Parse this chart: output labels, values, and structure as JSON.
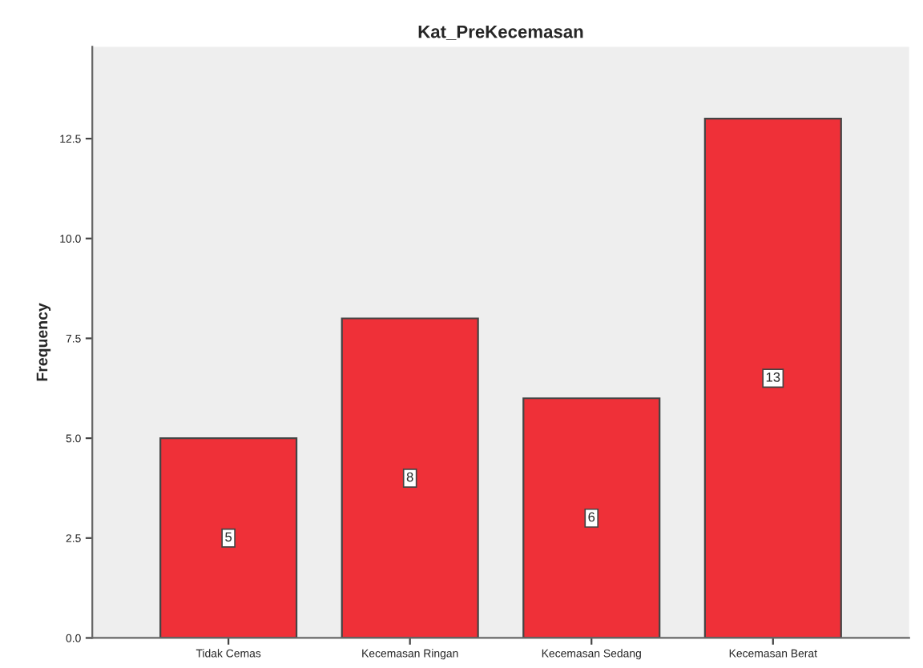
{
  "chart_data": {
    "type": "bar",
    "title": "Kat_PreKecemasan",
    "ylabel": "Frequency",
    "categories": [
      "Tidak Cemas",
      "Kecemasan Ringan",
      "Kecemasan Sedang",
      "Kecemasan Berat"
    ],
    "values": [
      5,
      8,
      6,
      13
    ],
    "color": "#ef3038",
    "data_labels": true,
    "ylim": [
      0,
      14.8
    ],
    "yticks": [
      {
        "value": 0,
        "label": "0.0"
      },
      {
        "value": 2.5,
        "label": "2.5"
      },
      {
        "value": 5,
        "label": "5.0"
      },
      {
        "value": 7.5,
        "label": "7.5"
      },
      {
        "value": 10,
        "label": "10.0"
      },
      {
        "value": 12.5,
        "label": "12.5"
      }
    ],
    "grid": false,
    "legend": false
  }
}
